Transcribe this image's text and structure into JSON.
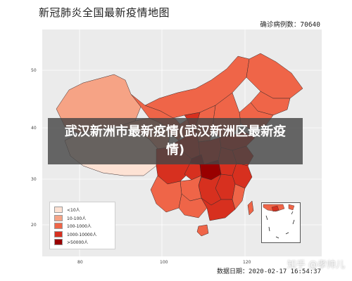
{
  "map": {
    "title": "新冠肺炎全国最新疫情地图",
    "confirmed_label": "确诊病例数：70640",
    "date_label": "数据日期：2020-02-17 16:54:37",
    "lat_ticks": [
      "50",
      "40",
      "30",
      "20"
    ],
    "lon_ticks": [
      "80",
      "100",
      "120"
    ],
    "legend": [
      {
        "label": "<10人",
        "color": "#fde2d4"
      },
      {
        "label": "10-100人",
        "color": "#f6a385"
      },
      {
        "label": "100-1000人",
        "color": "#ef6548"
      },
      {
        "label": "1000-10000人",
        "color": "#d7301f"
      },
      {
        "label": ">50000人",
        "color": "#990000"
      }
    ]
  },
  "banner": {
    "text": "武汉新洲市最新疫情(武汉新洲区最新疫情)"
  },
  "watermark": {
    "text": "知乎 @孝帅儿"
  }
}
